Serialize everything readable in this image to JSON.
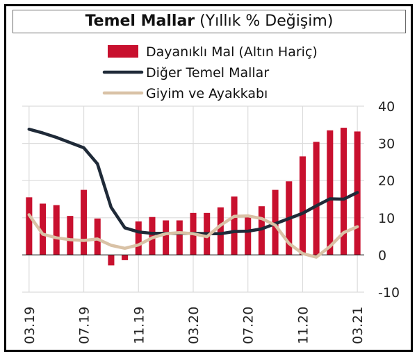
{
  "chart_title": "Temel Mallar",
  "chart_subtitle": "(Yıllık % Değişim)",
  "chart_data": {
    "type": "bar",
    "title": "Temel Mallar (Yıllık % Değişim)",
    "legend_position": "top",
    "grid": true,
    "ylim": [
      -10,
      40
    ],
    "yticks": [
      -10,
      0,
      10,
      20,
      30,
      40
    ],
    "categories": [
      "03.19",
      "04.19",
      "05.19",
      "06.19",
      "07.19",
      "08.19",
      "09.19",
      "10.19",
      "11.19",
      "12.19",
      "01.20",
      "02.20",
      "03.20",
      "04.20",
      "05.20",
      "06.20",
      "07.20",
      "08.20",
      "09.20",
      "10.20",
      "11.20",
      "12.20",
      "01.21",
      "02.21",
      "03.21"
    ],
    "xtick_labels": [
      "03.19",
      "07.19",
      "11.19",
      "03.20",
      "07.20",
      "11.20",
      "03.21"
    ],
    "series": [
      {
        "name": "Dayanıklı Mal (Altın Hariç)",
        "type": "bar",
        "color": "#c8102e",
        "values": [
          15.5,
          13.8,
          13.4,
          10.5,
          17.5,
          9.8,
          -2.8,
          -1.4,
          9.0,
          10.2,
          9.3,
          9.3,
          11.3,
          11.3,
          12.8,
          15.7,
          10.2,
          13.1,
          17.5,
          19.8,
          26.5,
          30.4,
          33.5,
          34.2,
          33.2
        ]
      },
      {
        "name": "Diğer Temel Mallar",
        "type": "line",
        "color": "#1f2a38",
        "values": [
          33.8,
          32.8,
          31.6,
          30.2,
          28.8,
          24.5,
          12.8,
          7.3,
          6.2,
          5.8,
          5.8,
          5.8,
          5.8,
          5.7,
          5.7,
          6.3,
          6.4,
          7.0,
          8.4,
          9.8,
          11.2,
          13.2,
          15.1,
          15.0,
          16.8
        ]
      },
      {
        "name": "Giyim ve Ayakkabı",
        "type": "line",
        "color": "#d9c2a6",
        "values": [
          10.8,
          5.6,
          4.6,
          4.1,
          3.9,
          4.3,
          2.6,
          1.8,
          2.7,
          4.6,
          5.7,
          6.0,
          5.7,
          4.9,
          8.0,
          10.4,
          10.5,
          9.8,
          8.0,
          3.1,
          0.4,
          -0.6,
          2.3,
          6.0,
          7.6
        ]
      }
    ]
  }
}
